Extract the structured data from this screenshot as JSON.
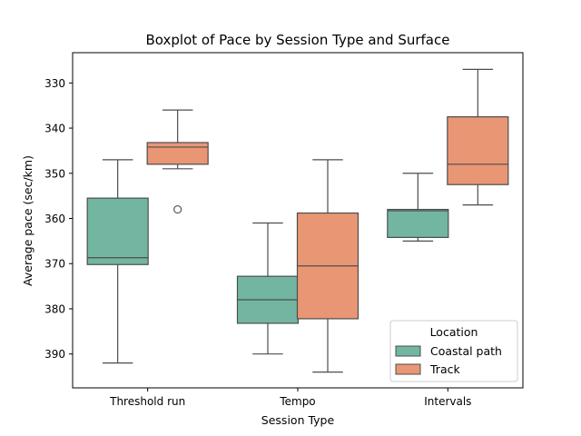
{
  "chart_data": {
    "type": "boxplot",
    "title": "Boxplot of Pace by Session Type and Surface",
    "xlabel": "Session Type",
    "ylabel": "Average pace (sec/km)",
    "y_inverted": true,
    "ylim": [
      397.5,
      323.3
    ],
    "yticks": [
      330,
      340,
      350,
      360,
      370,
      380,
      390
    ],
    "categories": [
      "Threshold run",
      "Tempo",
      "Intervals"
    ],
    "legend": {
      "title": "Location",
      "placement": "lower right"
    },
    "series": [
      {
        "name": "Coastal path",
        "color": "#72b6a1",
        "boxes": [
          {
            "whisker_low": 347,
            "q1": 355.5,
            "median": 368.7,
            "q3": 370.2,
            "whisker_high": 392,
            "outliers": []
          },
          {
            "whisker_low": 361,
            "q1": 372.8,
            "median": 378,
            "q3": 383.2,
            "whisker_high": 390,
            "outliers": []
          },
          {
            "whisker_low": 350,
            "q1": 358,
            "median": 358.3,
            "q3": 364.2,
            "whisker_high": 365,
            "outliers": []
          }
        ]
      },
      {
        "name": "Track",
        "color": "#e99675",
        "boxes": [
          {
            "whisker_low": 336,
            "q1": 343.2,
            "median": 344.2,
            "q3": 348,
            "whisker_high": 349,
            "outliers": [
              358
            ]
          },
          {
            "whisker_low": 347,
            "q1": 358.8,
            "median": 370.5,
            "q3": 382.2,
            "whisker_high": 394,
            "outliers": []
          },
          {
            "whisker_low": 327,
            "q1": 337.5,
            "median": 348,
            "q3": 352.5,
            "whisker_high": 357,
            "outliers": []
          }
        ]
      }
    ]
  }
}
